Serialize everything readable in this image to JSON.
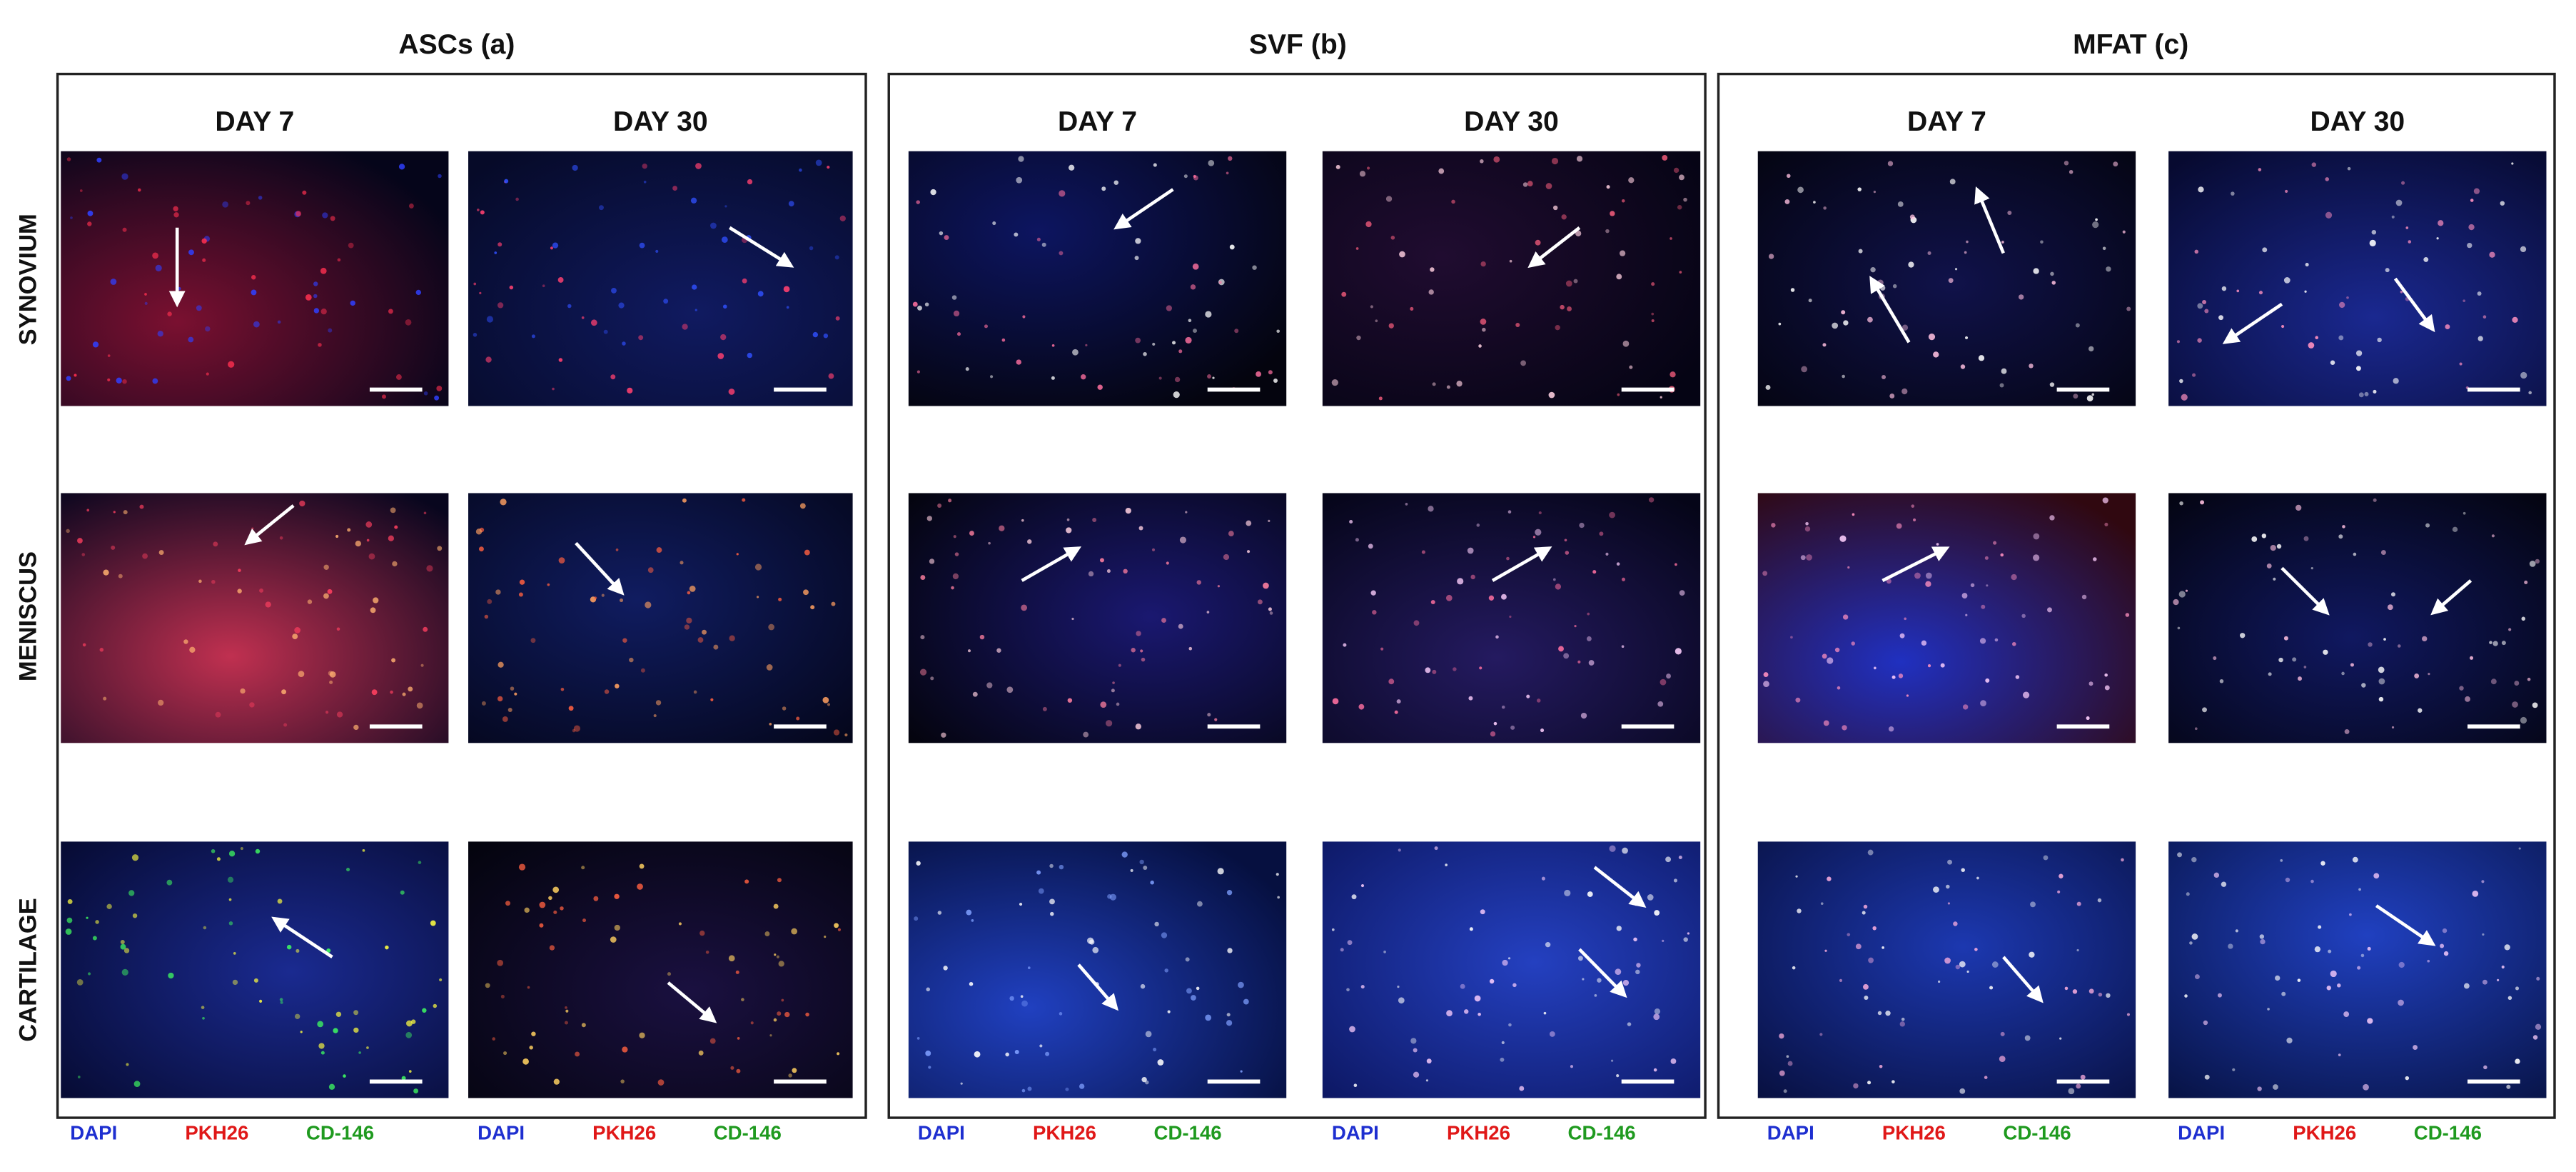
{
  "groups": [
    {
      "title": "ASCs (a)",
      "columns": [
        "DAY 7",
        "DAY 30"
      ]
    },
    {
      "title": "SVF (b)",
      "columns": [
        "DAY 7",
        "DAY 30"
      ]
    },
    {
      "title": "MFAT (c)",
      "columns": [
        "DAY 7",
        "DAY 30"
      ]
    }
  ],
  "rows": [
    "SYNOVIUM",
    "MENISCUS",
    "CARTILAGE"
  ],
  "legend": [
    "DAPI",
    "PKH26",
    "CD-146"
  ]
}
